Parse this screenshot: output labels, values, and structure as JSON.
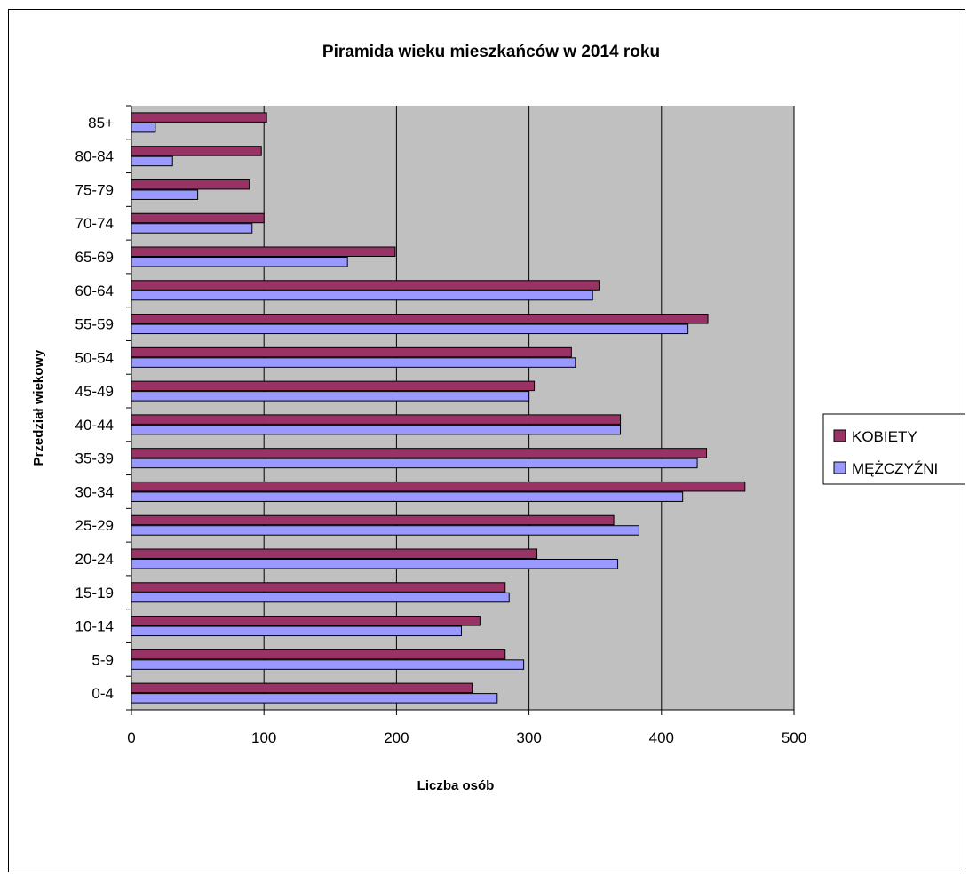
{
  "chart_data": {
    "type": "bar",
    "orientation": "horizontal",
    "title": "Piramida wieku mieszkańców w 2014 roku",
    "xlabel": "Liczba osób",
    "ylabel": "Przedział wiekowy",
    "xlim": [
      0,
      500
    ],
    "x_ticks": [
      "0",
      "100",
      "200",
      "300",
      "400",
      "500"
    ],
    "grid": "vertical",
    "legend_position": "right",
    "plot_background": "#c0c0c0",
    "categories": [
      "0-4",
      "5-9",
      "10-14",
      "15-19",
      "20-24",
      "25-29",
      "30-34",
      "35-39",
      "40-44",
      "45-49",
      "50-54",
      "55-59",
      "60-64",
      "65-69",
      "70-74",
      "75-79",
      "80-84",
      "85+"
    ],
    "series": [
      {
        "name": "KOBIETY",
        "color": "#993366",
        "values": [
          257,
          282,
          263,
          282,
          306,
          364,
          463,
          434,
          369,
          304,
          332,
          435,
          353,
          199,
          100,
          89,
          98,
          102
        ]
      },
      {
        "name": "MĘŻCZYŹNI",
        "color": "#9999ff",
        "values": [
          276,
          296,
          249,
          285,
          367,
          383,
          416,
          427,
          369,
          300,
          335,
          420,
          348,
          163,
          91,
          50,
          31,
          18
        ]
      }
    ]
  }
}
